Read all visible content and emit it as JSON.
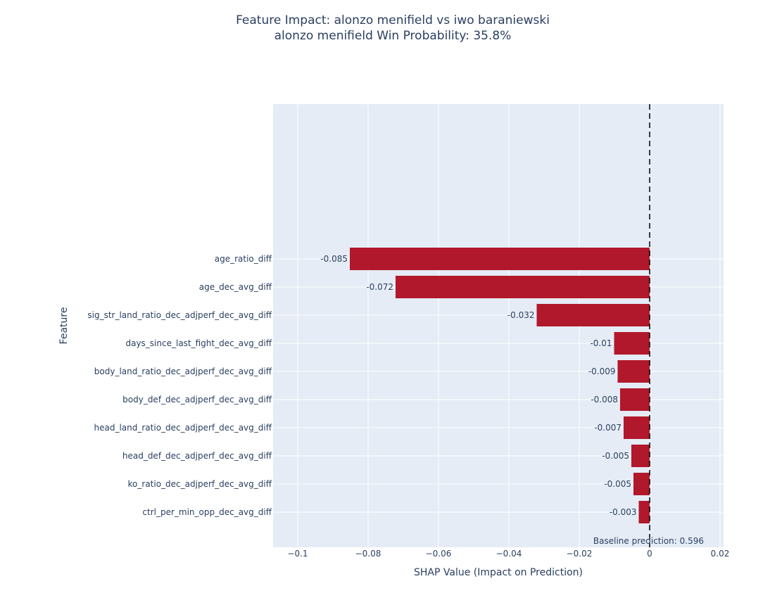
{
  "chart_data": {
    "type": "bar",
    "orientation": "horizontal",
    "title": "Feature Impact: alonzo menifield vs iwo baraniewski",
    "subtitle": "alonzo menifield Win Probability: 35.8%",
    "xlabel": "SHAP Value (Impact on Prediction)",
    "ylabel": "Feature",
    "xlim": [
      -0.107,
      0.021
    ],
    "xticks": [
      -0.1,
      -0.08,
      -0.06,
      -0.04,
      -0.02,
      0,
      0.02
    ],
    "xtick_labels": [
      "−0.1",
      "−0.08",
      "−0.06",
      "−0.04",
      "−0.02",
      "0",
      "0.02"
    ],
    "categories": [
      "age_ratio_diff",
      "age_dec_avg_diff",
      "sig_str_land_ratio_dec_adjperf_dec_avg_diff",
      "days_since_last_fight_dec_avg_diff",
      "body_land_ratio_dec_adjperf_dec_avg_diff",
      "body_def_dec_adjperf_dec_avg_diff",
      "head_land_ratio_dec_adjperf_dec_avg_diff",
      "head_def_dec_adjperf_dec_avg_diff",
      "ko_ratio_dec_adjperf_dec_avg_diff",
      "ctrl_per_min_opp_dec_avg_diff"
    ],
    "values": [
      -0.0852,
      -0.0722,
      -0.0321,
      -0.0101,
      -0.0091,
      -0.0084,
      -0.0074,
      -0.0052,
      -0.0046,
      -0.0031
    ],
    "value_labels": [
      "-0.085",
      "-0.072",
      "-0.032",
      "-0.01",
      "-0.009",
      "-0.008",
      "-0.007",
      "-0.005",
      "-0.005",
      "-0.003"
    ],
    "reference_line": {
      "x": 0,
      "style": "dashed"
    },
    "annotation": "Baseline prediction: 0.596",
    "colors": {
      "bar": "#b2182b",
      "plot_bg": "#e5ecf6",
      "grid": "#ffffff",
      "text": "#2a3f5f",
      "reference_line": "#000000"
    },
    "grid": true,
    "legend": false
  }
}
